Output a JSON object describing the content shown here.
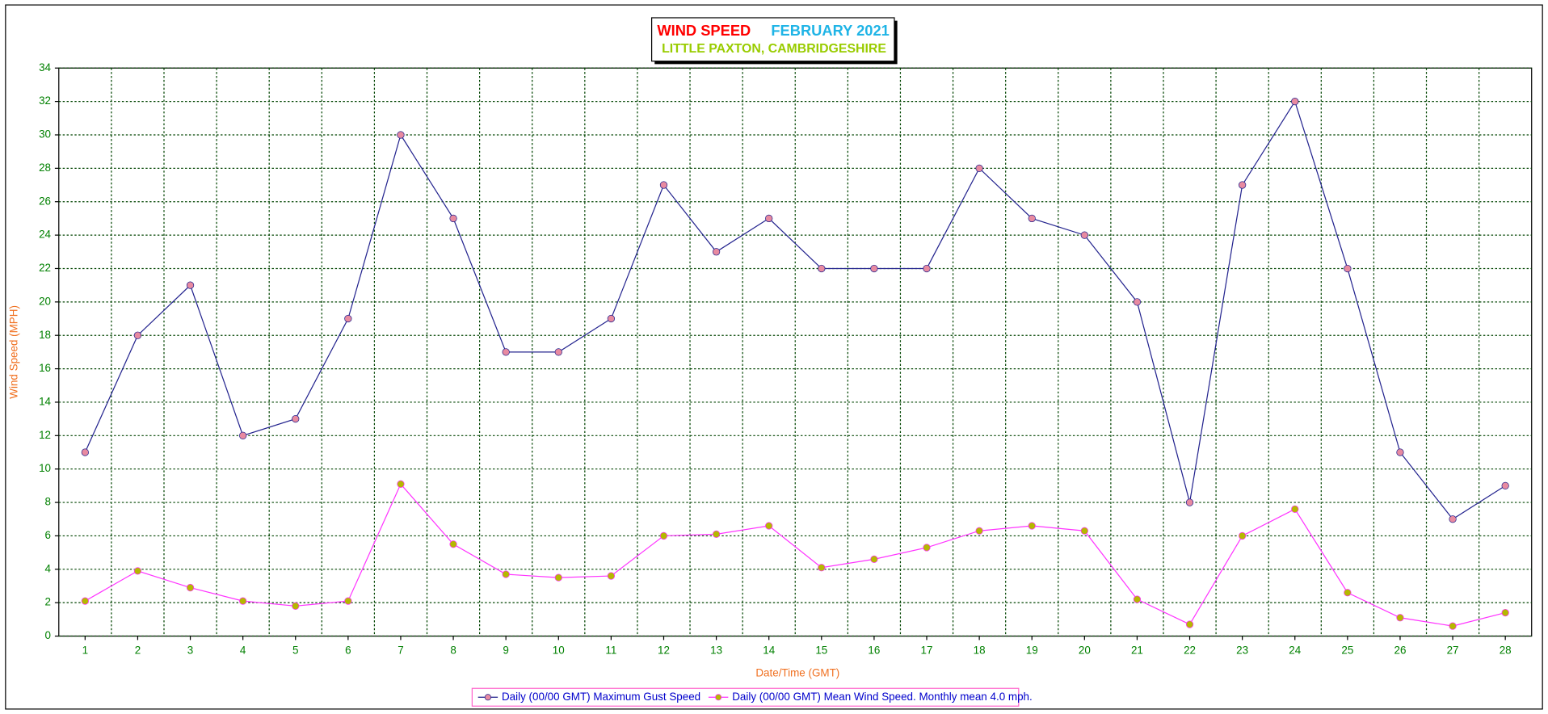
{
  "chart_data": {
    "type": "line",
    "title": "WIND SPEED",
    "title_period": "FEBRUARY 2021",
    "subtitle": "LITTLE PAXTON, CAMBRIDGESHIRE",
    "x_label": "Date/Time (GMT)",
    "y_label": "Wind Speed (MPH)",
    "categories": [
      "1",
      "2",
      "3",
      "4",
      "5",
      "6",
      "7",
      "8",
      "9",
      "10",
      "11",
      "12",
      "13",
      "14",
      "15",
      "16",
      "17",
      "18",
      "19",
      "20",
      "21",
      "22",
      "23",
      "24",
      "25",
      "26",
      "27",
      "28"
    ],
    "series": [
      {
        "name": "Daily (00/00 GMT) Maximum Gust Speed",
        "color": "#23238e",
        "marker_color": "#e88aa0",
        "values": [
          11,
          18,
          21,
          12,
          13,
          19,
          30,
          25,
          17,
          17,
          19,
          27,
          23,
          25,
          22,
          22,
          22,
          28,
          25,
          24,
          20,
          8,
          27,
          32,
          22,
          11,
          7,
          9
        ]
      },
      {
        "name": "Daily (00/00 GMT) Mean Wind Speed. Monthly mean 4.0 mph.",
        "color": "#ff33ff",
        "marker_color": "#b5b800",
        "values": [
          2.1,
          3.9,
          2.9,
          2.1,
          1.8,
          2.1,
          9.1,
          5.5,
          3.7,
          3.5,
          3.6,
          6.0,
          6.1,
          6.6,
          4.1,
          4.6,
          5.3,
          6.3,
          6.6,
          6.3,
          2.2,
          0.7,
          6.0,
          7.6,
          2.6,
          1.1,
          0.6,
          1.4
        ]
      }
    ],
    "ylim": [
      0,
      34
    ],
    "yticks": [
      0,
      2,
      4,
      6,
      8,
      10,
      12,
      14,
      16,
      18,
      20,
      22,
      24,
      26,
      28,
      30,
      32,
      34
    ],
    "grid": true
  }
}
